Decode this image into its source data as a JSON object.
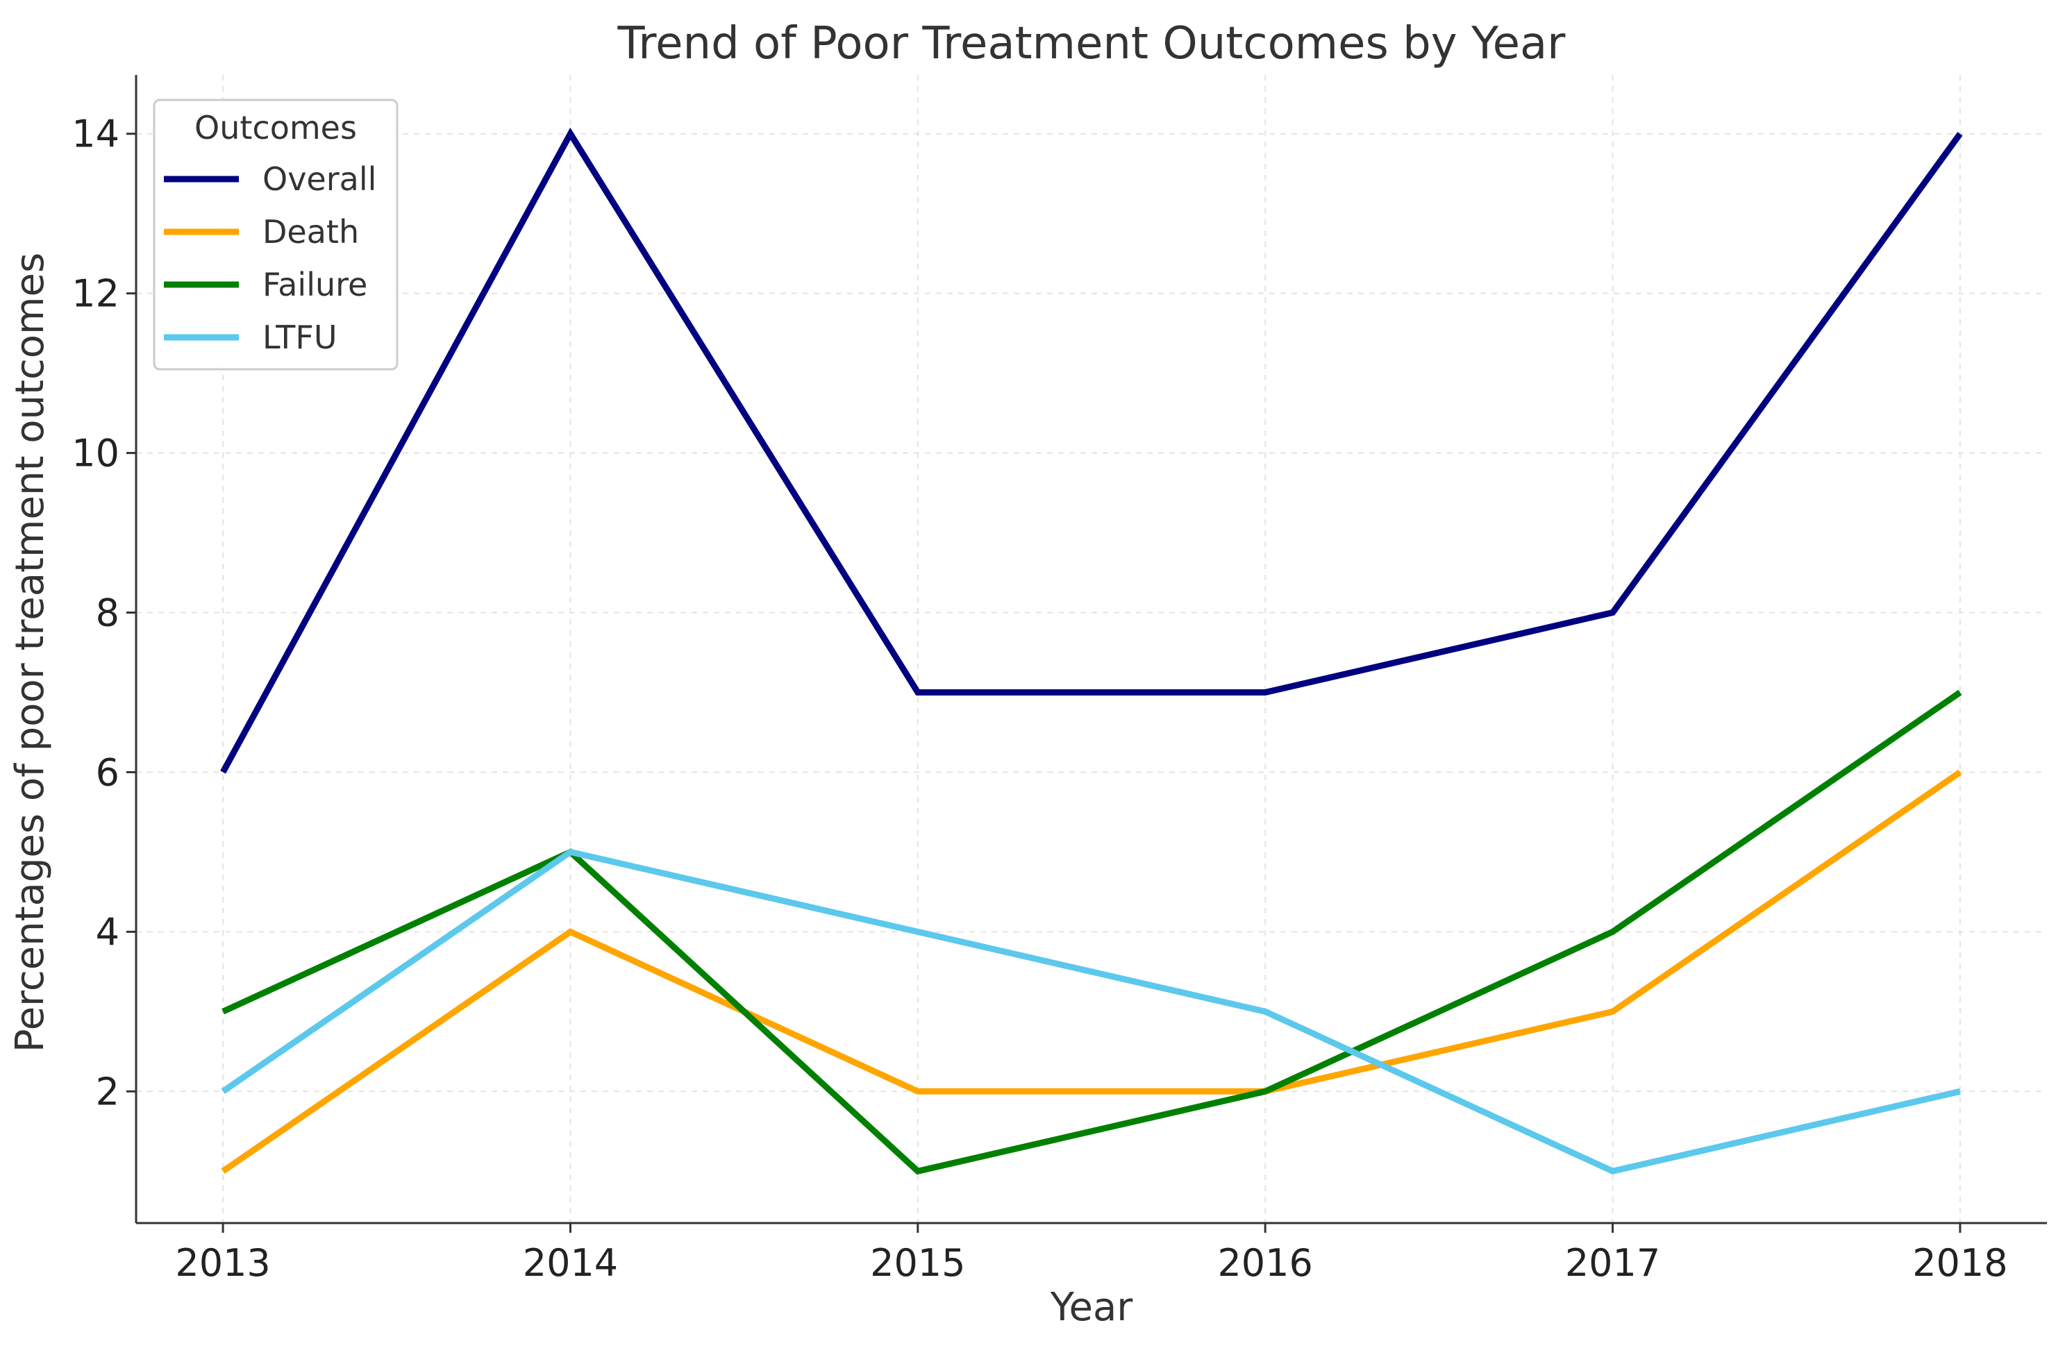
{
  "chart_data": {
    "type": "line",
    "title": "Trend of Poor Treatment Outcomes by Year",
    "xlabel": "Year",
    "ylabel": "Percentages of poor treatment outcomes",
    "x": [
      "2013",
      "2014",
      "2015",
      "2016",
      "2017",
      "2018"
    ],
    "xlim": [
      2012.75,
      2018.25
    ],
    "ylim": [
      0.35,
      14.65
    ],
    "yticks": [
      2,
      4,
      6,
      8,
      10,
      12,
      14
    ],
    "grid": true,
    "legend_title": "Outcomes",
    "legend_position": "top-left",
    "series": [
      {
        "name": "Overall",
        "color": "#000080",
        "values": [
          6,
          14,
          7,
          7,
          8,
          14
        ]
      },
      {
        "name": "Death",
        "color": "#FFA500",
        "values": [
          1,
          4,
          2,
          2,
          3,
          6
        ]
      },
      {
        "name": "Failure",
        "color": "#008000",
        "values": [
          3,
          5,
          1,
          2,
          4,
          7
        ]
      },
      {
        "name": "LTFU",
        "color": "#5BC8EC",
        "values": [
          2,
          5,
          4,
          3,
          1,
          2
        ]
      }
    ]
  }
}
